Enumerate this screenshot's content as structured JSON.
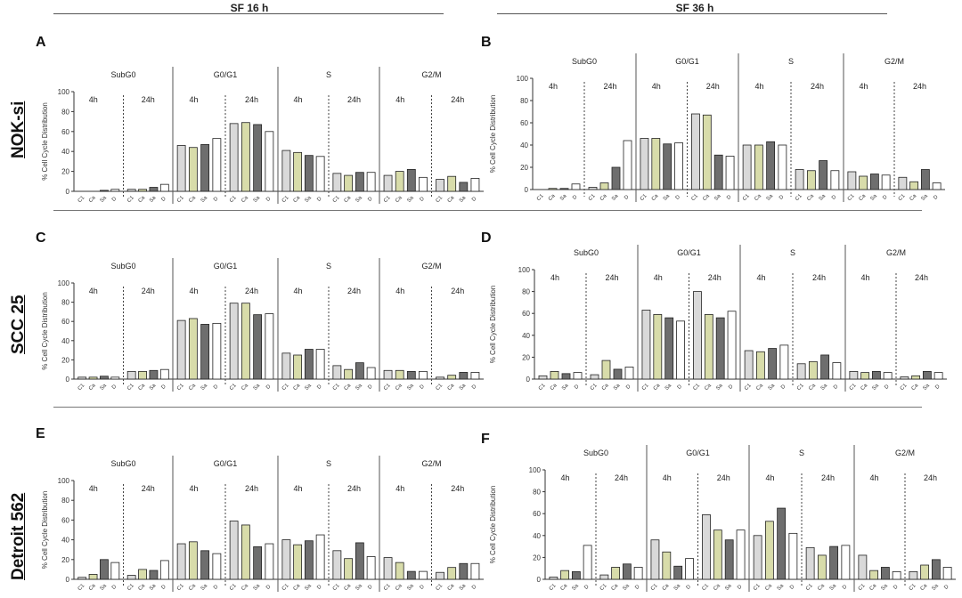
{
  "headers": {
    "left": "SF 16 h",
    "right": "SF 36 h"
  },
  "rows": [
    "NOK-si",
    "SCC 25",
    "Detroit 562"
  ],
  "chart_data": [
    {
      "type": "bar",
      "panel": "A",
      "ylabel": "% Cell Cycle Distribution",
      "ylim": [
        0,
        100
      ],
      "yticks": [
        0,
        20,
        40,
        60,
        80,
        100
      ],
      "groups": [
        "SubG0",
        "G0/G1",
        "S",
        "G2/M"
      ],
      "times": [
        "4h",
        "24h"
      ],
      "categories": [
        "C1",
        "Ca",
        "Sa",
        "D"
      ],
      "colors": {
        "C1": "#d9d9d9",
        "Ca": "#d8dcaa",
        "Sa": "#6e6e6e",
        "D": "#ffffff"
      },
      "values": [
        [
          [
            0,
            0,
            1,
            2
          ],
          [
            2,
            2,
            4,
            7
          ]
        ],
        [
          [
            46,
            44,
            47,
            53
          ],
          [
            68,
            69,
            67,
            60
          ]
        ],
        [
          [
            41,
            39,
            36,
            35
          ],
          [
            18,
            16,
            19,
            19
          ]
        ],
        [
          [
            16,
            20,
            22,
            14
          ],
          [
            12,
            15,
            9,
            13
          ]
        ]
      ]
    },
    {
      "type": "bar",
      "panel": "B",
      "ylabel": "% Cell Cycle Distribution",
      "ylim": [
        0,
        100
      ],
      "yticks": [
        0,
        20,
        40,
        60,
        80,
        100
      ],
      "groups": [
        "SubG0",
        "G0/G1",
        "S",
        "G2/M"
      ],
      "times": [
        "4h",
        "24h"
      ],
      "categories": [
        "C1",
        "Ca",
        "Sa",
        "D"
      ],
      "colors": {
        "C1": "#d9d9d9",
        "Ca": "#d8dcaa",
        "Sa": "#6e6e6e",
        "D": "#ffffff"
      },
      "values": [
        [
          [
            0,
            1,
            1,
            5
          ],
          [
            2,
            6,
            20,
            44
          ]
        ],
        [
          [
            46,
            46,
            41,
            42
          ],
          [
            68,
            67,
            31,
            30
          ]
        ],
        [
          [
            40,
            40,
            43,
            40
          ],
          [
            18,
            17,
            26,
            17
          ]
        ],
        [
          [
            16,
            12,
            14,
            13
          ],
          [
            11,
            7,
            18,
            6
          ]
        ]
      ]
    },
    {
      "type": "bar",
      "panel": "C",
      "ylabel": "% Cell Cycle Distribution",
      "ylim": [
        0,
        100
      ],
      "yticks": [
        0,
        20,
        40,
        60,
        80,
        100
      ],
      "groups": [
        "SubG0",
        "G0/G1",
        "S",
        "G2/M"
      ],
      "times": [
        "4h",
        "24h"
      ],
      "categories": [
        "C1",
        "Ca",
        "Sa",
        "D"
      ],
      "colors": {
        "C1": "#d9d9d9",
        "Ca": "#d8dcaa",
        "Sa": "#6e6e6e",
        "D": "#ffffff"
      },
      "values": [
        [
          [
            2,
            2,
            3,
            2
          ],
          [
            8,
            8,
            9,
            10
          ]
        ],
        [
          [
            61,
            63,
            57,
            58
          ],
          [
            79,
            79,
            67,
            68
          ]
        ],
        [
          [
            27,
            25,
            31,
            31
          ],
          [
            14,
            10,
            17,
            12
          ]
        ],
        [
          [
            9,
            9,
            8,
            8
          ],
          [
            2,
            4,
            7,
            7
          ]
        ]
      ]
    },
    {
      "type": "bar",
      "panel": "D",
      "ylabel": "% Cell Cycle Distribution",
      "ylim": [
        0,
        100
      ],
      "yticks": [
        0,
        20,
        40,
        60,
        80,
        100
      ],
      "groups": [
        "SubG0",
        "G0/G1",
        "S",
        "G2/M"
      ],
      "times": [
        "4h",
        "24h"
      ],
      "categories": [
        "C1",
        "Ca",
        "Sa",
        "D"
      ],
      "colors": {
        "C1": "#d9d9d9",
        "Ca": "#d8dcaa",
        "Sa": "#6e6e6e",
        "D": "#ffffff"
      },
      "values": [
        [
          [
            3,
            7,
            5,
            6
          ],
          [
            4,
            17,
            9,
            11
          ]
        ],
        [
          [
            63,
            59,
            56,
            53
          ],
          [
            80,
            59,
            56,
            62
          ]
        ],
        [
          [
            26,
            25,
            28,
            31
          ],
          [
            14,
            16,
            22,
            15
          ]
        ],
        [
          [
            7,
            6,
            7,
            6
          ],
          [
            2,
            3,
            7,
            6
          ]
        ]
      ]
    },
    {
      "type": "bar",
      "panel": "E",
      "ylabel": "% Cell Cycle Distribution",
      "ylim": [
        0,
        100
      ],
      "yticks": [
        0,
        20,
        40,
        60,
        80,
        100
      ],
      "groups": [
        "SubG0",
        "G0/G1",
        "S",
        "G2/M"
      ],
      "times": [
        "4h",
        "24h"
      ],
      "categories": [
        "C1",
        "Ca",
        "Sa",
        "D"
      ],
      "colors": {
        "C1": "#d9d9d9",
        "Ca": "#d8dcaa",
        "Sa": "#6e6e6e",
        "D": "#ffffff"
      },
      "values": [
        [
          [
            2,
            5,
            20,
            17
          ],
          [
            4,
            10,
            9,
            19
          ]
        ],
        [
          [
            36,
            38,
            29,
            26
          ],
          [
            59,
            55,
            33,
            36
          ]
        ],
        [
          [
            40,
            35,
            39,
            45
          ],
          [
            29,
            21,
            37,
            23
          ]
        ],
        [
          [
            22,
            17,
            8,
            8
          ],
          [
            7,
            12,
            16,
            16
          ]
        ]
      ]
    },
    {
      "type": "bar",
      "panel": "F",
      "ylabel": "% Cell Cycle Distribution",
      "ylim": [
        0,
        100
      ],
      "yticks": [
        0,
        20,
        40,
        60,
        80,
        100
      ],
      "groups": [
        "SubG0",
        "G0/G1",
        "S",
        "G2/M"
      ],
      "times": [
        "4h",
        "24h"
      ],
      "categories": [
        "C1",
        "Ca",
        "Sa",
        "D"
      ],
      "colors": {
        "C1": "#d9d9d9",
        "Ca": "#d8dcaa",
        "Sa": "#6e6e6e",
        "D": "#ffffff"
      },
      "values": [
        [
          [
            2,
            8,
            7,
            31
          ],
          [
            4,
            11,
            14,
            11
          ]
        ],
        [
          [
            36,
            25,
            12,
            19
          ],
          [
            59,
            45,
            36,
            45
          ]
        ],
        [
          [
            40,
            53,
            65,
            42
          ],
          [
            29,
            22,
            30,
            31
          ]
        ],
        [
          [
            22,
            8,
            11,
            7
          ],
          [
            7,
            13,
            18,
            11
          ]
        ]
      ]
    }
  ]
}
